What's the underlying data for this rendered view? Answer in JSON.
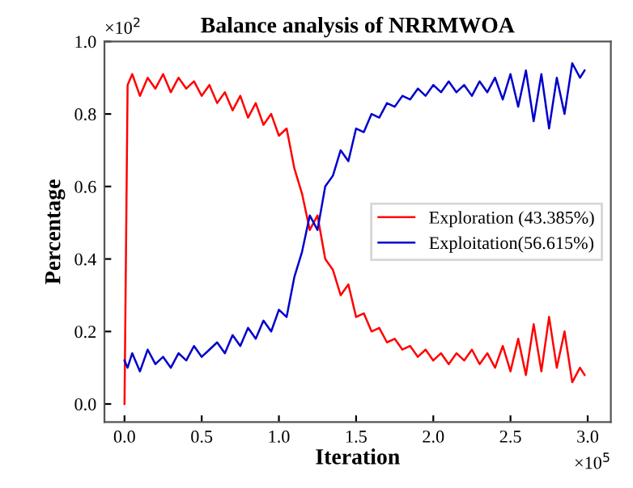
{
  "chart_data": {
    "type": "line",
    "title": "Balance analysis of NRRMWOA",
    "xlabel": "Iteration",
    "ylabel": "Percentage",
    "x": [
      0.0,
      0.02,
      0.05,
      0.1,
      0.15,
      0.2,
      0.25,
      0.3,
      0.35,
      0.4,
      0.45,
      0.5,
      0.55,
      0.6,
      0.65,
      0.7,
      0.75,
      0.8,
      0.85,
      0.9,
      0.95,
      1.0,
      1.05,
      1.1,
      1.15,
      1.2,
      1.25,
      1.3,
      1.35,
      1.4,
      1.45,
      1.5,
      1.55,
      1.6,
      1.65,
      1.7,
      1.75,
      1.8,
      1.85,
      1.9,
      1.95,
      2.0,
      2.05,
      2.1,
      2.15,
      2.2,
      2.25,
      2.3,
      2.35,
      2.4,
      2.45,
      2.5,
      2.55,
      2.6,
      2.65,
      2.7,
      2.75,
      2.8,
      2.85,
      2.9,
      2.95,
      2.98
    ],
    "series": [
      {
        "name": "Exploration (43.385%)",
        "color": "#ff0000",
        "values": [
          0.0,
          0.88,
          0.91,
          0.85,
          0.9,
          0.87,
          0.91,
          0.86,
          0.9,
          0.87,
          0.89,
          0.85,
          0.88,
          0.83,
          0.86,
          0.81,
          0.85,
          0.79,
          0.83,
          0.77,
          0.8,
          0.74,
          0.76,
          0.65,
          0.58,
          0.48,
          0.52,
          0.4,
          0.37,
          0.3,
          0.33,
          0.24,
          0.25,
          0.2,
          0.21,
          0.17,
          0.18,
          0.15,
          0.16,
          0.13,
          0.15,
          0.12,
          0.14,
          0.11,
          0.14,
          0.12,
          0.15,
          0.11,
          0.14,
          0.1,
          0.16,
          0.09,
          0.18,
          0.08,
          0.22,
          0.09,
          0.24,
          0.1,
          0.2,
          0.06,
          0.1,
          0.08
        ]
      },
      {
        "name": "Exploitation(56.615%)",
        "color": "#0000cc",
        "values": [
          0.12,
          0.1,
          0.14,
          0.09,
          0.15,
          0.11,
          0.13,
          0.1,
          0.14,
          0.12,
          0.16,
          0.13,
          0.15,
          0.17,
          0.14,
          0.19,
          0.16,
          0.21,
          0.18,
          0.23,
          0.2,
          0.26,
          0.24,
          0.35,
          0.42,
          0.52,
          0.48,
          0.6,
          0.63,
          0.7,
          0.67,
          0.76,
          0.75,
          0.8,
          0.79,
          0.83,
          0.82,
          0.85,
          0.84,
          0.87,
          0.85,
          0.88,
          0.86,
          0.89,
          0.86,
          0.88,
          0.85,
          0.89,
          0.86,
          0.9,
          0.84,
          0.91,
          0.82,
          0.92,
          0.78,
          0.91,
          0.76,
          0.9,
          0.8,
          0.94,
          0.9,
          0.92
        ]
      }
    ],
    "xlim": [
      -0.13,
      3.15
    ],
    "ylim": [
      -0.05,
      1.0
    ],
    "xticks": [
      {
        "value": 0,
        "label": "0.0"
      },
      0.5,
      {
        "value": 1,
        "label": "1.0"
      },
      1.5,
      {
        "value": 2,
        "label": "2.0"
      },
      2.5,
      {
        "value": 3,
        "label": "3.0"
      }
    ],
    "yticks": [
      {
        "value": 0,
        "label": "0.0"
      },
      0.2,
      0.4,
      0.6,
      0.8,
      {
        "value": 1,
        "label": "1.0"
      }
    ],
    "annotations": [
      "×10$^{2}$",
      "×10$^{5}$"
    ],
    "legend": "right",
    "grid": false,
    "marker": "none",
    "line_style": "solid"
  }
}
